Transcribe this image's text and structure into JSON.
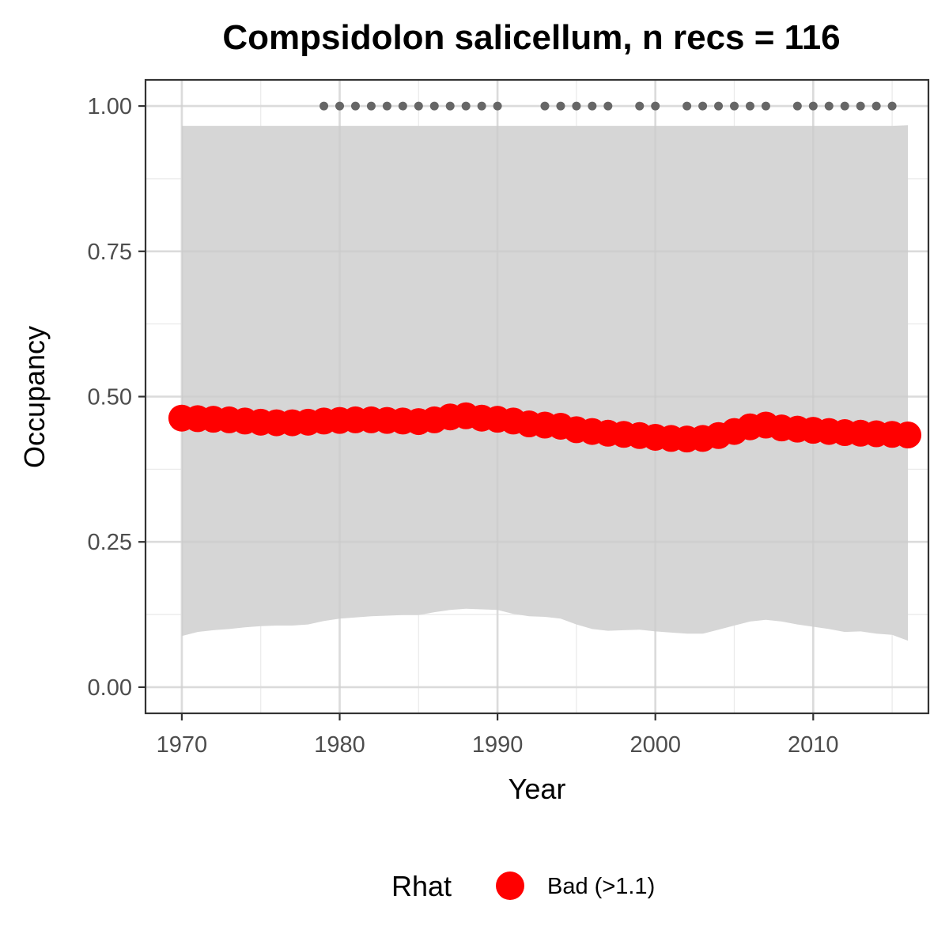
{
  "chart_data": {
    "type": "line",
    "title": "Compsidolon salicellum, n recs = 116",
    "xlabel": "Year",
    "ylabel": "Occupancy",
    "xlim": [
      1967.7,
      2017.3
    ],
    "ylim": [
      -0.045,
      1.045
    ],
    "x_ticks": [
      1970,
      1980,
      1990,
      2000,
      2010
    ],
    "x_tick_labels": [
      "1970",
      "1980",
      "1990",
      "2000",
      "2010"
    ],
    "y_ticks": [
      0,
      0.25,
      0.5,
      0.75,
      1
    ],
    "y_tick_labels": [
      "0.00",
      "0.25",
      "0.50",
      "0.75",
      "1.00"
    ],
    "grid": true,
    "x": [
      1970,
      1971,
      1972,
      1973,
      1974,
      1975,
      1976,
      1977,
      1978,
      1979,
      1980,
      1981,
      1982,
      1983,
      1984,
      1985,
      1986,
      1987,
      1988,
      1989,
      1990,
      1991,
      1992,
      1993,
      1994,
      1995,
      1996,
      1997,
      1998,
      1999,
      2000,
      2001,
      2002,
      2003,
      2004,
      2005,
      2006,
      2007,
      2008,
      2009,
      2010,
      2011,
      2012,
      2013,
      2014,
      2015,
      2016
    ],
    "series": [
      {
        "values": [
          0.463,
          0.462,
          0.461,
          0.46,
          0.458,
          0.456,
          0.455,
          0.455,
          0.456,
          0.458,
          0.459,
          0.46,
          0.46,
          0.459,
          0.458,
          0.457,
          0.46,
          0.465,
          0.467,
          0.463,
          0.461,
          0.458,
          0.453,
          0.451,
          0.449,
          0.443,
          0.44,
          0.437,
          0.435,
          0.433,
          0.43,
          0.428,
          0.427,
          0.428,
          0.433,
          0.44,
          0.448,
          0.451,
          0.446,
          0.444,
          0.442,
          0.44,
          0.438,
          0.437,
          0.436,
          0.435,
          0.434
        ],
        "lower": [
          0.088,
          0.095,
          0.098,
          0.1,
          0.103,
          0.105,
          0.106,
          0.106,
          0.108,
          0.114,
          0.118,
          0.12,
          0.122,
          0.123,
          0.124,
          0.124,
          0.129,
          0.133,
          0.135,
          0.134,
          0.133,
          0.126,
          0.122,
          0.121,
          0.118,
          0.108,
          0.1,
          0.097,
          0.098,
          0.099,
          0.096,
          0.094,
          0.092,
          0.092,
          0.099,
          0.106,
          0.113,
          0.116,
          0.113,
          0.108,
          0.104,
          0.1,
          0.095,
          0.096,
          0.092,
          0.09,
          0.08
        ],
        "upper": [
          0.966,
          0.966,
          0.966,
          0.966,
          0.966,
          0.966,
          0.966,
          0.966,
          0.966,
          0.966,
          0.966,
          0.966,
          0.966,
          0.966,
          0.966,
          0.966,
          0.966,
          0.966,
          0.966,
          0.966,
          0.966,
          0.966,
          0.966,
          0.966,
          0.966,
          0.966,
          0.966,
          0.966,
          0.966,
          0.966,
          0.966,
          0.966,
          0.966,
          0.966,
          0.966,
          0.966,
          0.966,
          0.966,
          0.966,
          0.966,
          0.966,
          0.966,
          0.966,
          0.966,
          0.966,
          0.966,
          0.967
        ],
        "color": "#ff0000",
        "band_color": "#d6d6d6"
      }
    ],
    "record_years": [
      1979,
      1980,
      1981,
      1982,
      1983,
      1984,
      1985,
      1986,
      1987,
      1988,
      1989,
      1990,
      1993,
      1994,
      1995,
      1996,
      1997,
      1999,
      2000,
      2002,
      2003,
      2004,
      2005,
      2006,
      2007,
      2009,
      2010,
      2011,
      2012,
      2013,
      2014,
      2015
    ],
    "record_y": 1.0,
    "record_color": "#666666",
    "legend": {
      "title": "Rhat",
      "label": "Bad (>1.1)",
      "color": "#ff0000",
      "position": "bottom"
    }
  }
}
